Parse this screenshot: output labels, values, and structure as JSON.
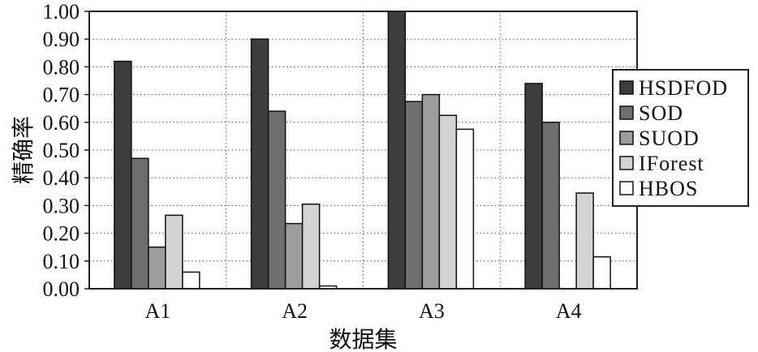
{
  "chart_data": {
    "type": "bar",
    "categories": [
      "A1",
      "A2",
      "A3",
      "A4"
    ],
    "series": [
      {
        "name": "HSDFOD",
        "color": "#3d3d3d",
        "values": [
          0.82,
          0.9,
          1.0,
          0.74
        ]
      },
      {
        "name": "SOD",
        "color": "#6e6e6e",
        "values": [
          0.47,
          0.64,
          0.675,
          0.6
        ]
      },
      {
        "name": "SUOD",
        "color": "#9d9d9d",
        "values": [
          0.15,
          0.235,
          0.7,
          0.0
        ]
      },
      {
        "name": "IForest",
        "color": "#d3d3d3",
        "values": [
          0.265,
          0.305,
          0.625,
          0.345
        ]
      },
      {
        "name": "HBOS",
        "color": "#ffffff",
        "values": [
          0.06,
          0.01,
          0.575,
          0.115
        ]
      }
    ],
    "xlabel": "数据集",
    "ylabel": "精确率",
    "ylim": [
      0,
      1.0
    ],
    "yticks": [
      "0.00",
      "0.10",
      "0.20",
      "0.30",
      "0.40",
      "0.50",
      "0.60",
      "0.70",
      "0.80",
      "0.90",
      "1.00"
    ],
    "grid": "dotted",
    "legend_position": "right"
  }
}
